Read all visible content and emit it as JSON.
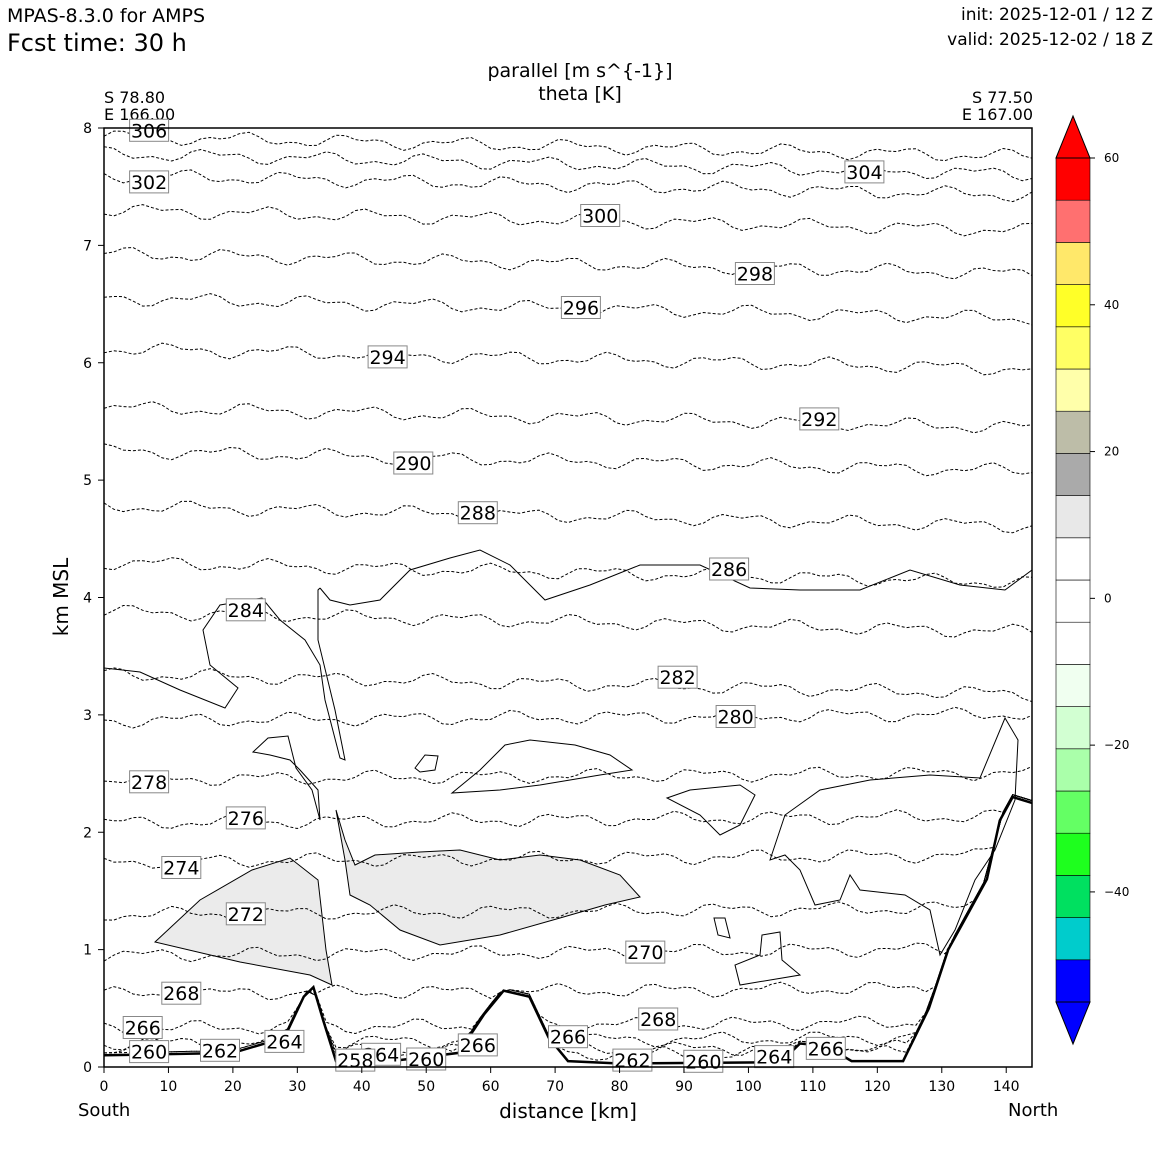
{
  "header": {
    "model": "MPAS-8.3.0 for AMPS",
    "forecast_time": "Fcst time:   30 h",
    "init": "init: 2025-12-01 / 12 Z",
    "valid": "valid: 2025-12-02 / 18 Z"
  },
  "cross_section": {
    "start": {
      "lat": "S 78.80",
      "lon": "E 166.00",
      "end_label": "South"
    },
    "end": {
      "lat": "S 77.50",
      "lon": "E 167.00",
      "end_label": "North"
    }
  },
  "chart_data": {
    "type": "cross-section",
    "title": "parallel [m s^{-1}]",
    "subtitle": "theta [K]",
    "xlabel": "distance [km]",
    "ylabel": "km MSL",
    "xlim": [
      0,
      144
    ],
    "ylim": [
      0,
      8
    ],
    "xticks": [
      "0",
      "10",
      "20",
      "30",
      "40",
      "50",
      "60",
      "70",
      "80",
      "90",
      "100",
      "110",
      "120",
      "130",
      "140"
    ],
    "yticks": [
      "0",
      "1",
      "2",
      "3",
      "4",
      "5",
      "6",
      "7",
      "8"
    ],
    "theta_contours": [
      {
        "label": "306",
        "base": 7.93,
        "label_at": 3
      },
      {
        "label": "304",
        "base": 7.78,
        "label_at": 114
      },
      {
        "label": "302",
        "base": 7.6,
        "label_at": 3
      },
      {
        "label": "300",
        "base": 7.3,
        "label_at": 73
      },
      {
        "label": "298",
        "base": 6.93,
        "label_at": 97
      },
      {
        "label": "296",
        "base": 6.55,
        "label_at": 70
      },
      {
        "label": "294",
        "base": 6.12,
        "label_at": 40
      },
      {
        "label": "292",
        "base": 5.62,
        "label_at": 107
      },
      {
        "label": "290",
        "base": 5.25,
        "label_at": 44
      },
      {
        "label": "288",
        "base": 4.78,
        "label_at": 54
      },
      {
        "label": "286",
        "base": 4.3,
        "label_at": 93
      },
      {
        "label": "284",
        "base": 3.88,
        "label_at": 18
      },
      {
        "label": "282",
        "base": 3.35,
        "label_at": 85
      },
      {
        "label": "280",
        "base": 2.95,
        "label_at": 94
      },
      {
        "label": "278",
        "base": 2.45,
        "label_at": 3
      },
      {
        "label": "276",
        "base": 2.08,
        "label_at": 18
      },
      {
        "label": "274",
        "base": 1.75,
        "label_at": 8
      },
      {
        "label": "272",
        "base": 1.3,
        "label_at": 18
      },
      {
        "label": "270",
        "base": 0.95,
        "label_at": 80
      },
      {
        "label": "268",
        "base": 0.62,
        "label_at": 8
      },
      {
        "label": "266",
        "base": 0.33,
        "label_at": 2
      },
      {
        "label": "264",
        "base": 0.2,
        "label_at": 24
      },
      {
        "label": "262",
        "base": 0.12,
        "label_at": 14
      },
      {
        "label": "260",
        "base": 0.08,
        "label_at": 3
      }
    ],
    "extra_theta_labels": [
      {
        "label": "268",
        "x": 86,
        "y": 0.4
      },
      {
        "label": "266",
        "x": 58,
        "y": 0.18
      },
      {
        "label": "266",
        "x": 72,
        "y": 0.25
      },
      {
        "label": "266",
        "x": 112,
        "y": 0.15
      },
      {
        "label": "264",
        "x": 43,
        "y": 0.1
      },
      {
        "label": "264",
        "x": 104,
        "y": 0.08
      },
      {
        "label": "262",
        "x": 82,
        "y": 0.05
      },
      {
        "label": "260",
        "x": 50,
        "y": 0.06
      },
      {
        "label": "260",
        "x": 93,
        "y": 0.04
      },
      {
        "label": "258",
        "x": 39,
        "y": 0.05
      }
    ],
    "terrain": [
      [
        0,
        0.1
      ],
      [
        20,
        0.12
      ],
      [
        28,
        0.25
      ],
      [
        31,
        0.6
      ],
      [
        32.5,
        0.68
      ],
      [
        34,
        0.4
      ],
      [
        36,
        0.05
      ],
      [
        46,
        0.06
      ],
      [
        55,
        0.12
      ],
      [
        59,
        0.45
      ],
      [
        62,
        0.65
      ],
      [
        66,
        0.6
      ],
      [
        69,
        0.25
      ],
      [
        72,
        0.05
      ],
      [
        80,
        0.03
      ],
      [
        105,
        0.04
      ],
      [
        108,
        0.2
      ],
      [
        112,
        0.18
      ],
      [
        116,
        0.05
      ],
      [
        124,
        0.05
      ],
      [
        128,
        0.5
      ],
      [
        131,
        1.0
      ],
      [
        134,
        1.3
      ],
      [
        137,
        1.6
      ],
      [
        139,
        2.1
      ],
      [
        141,
        2.3
      ],
      [
        144,
        2.25
      ]
    ],
    "colorbar": {
      "ticks": [
        "60",
        "40",
        "20",
        "0",
        "−20",
        "−40"
      ],
      "levels": [
        -55,
        -50,
        -45,
        -40,
        -35,
        -30,
        -25,
        -20,
        -15,
        -10,
        -5,
        0,
        5,
        10,
        15,
        20,
        25,
        30,
        35,
        40,
        45,
        50,
        55,
        60
      ],
      "colors": [
        "#0000ff",
        "#00cccc",
        "#00e060",
        "#1eff1e",
        "#64ff64",
        "#aaffaa",
        "#d2ffd2",
        "#f0fff0",
        "#ffffff",
        "#ffffff",
        "#ffffff",
        "#e8e8e8",
        "#aaaaaa",
        "#bdbda8",
        "#ffffaa",
        "#ffff64",
        "#ffff28",
        "#ffe86a",
        "#ff7070",
        "#ff0000"
      ],
      "extend_low": "#0000ff",
      "extend_high": "#ff0000"
    }
  }
}
